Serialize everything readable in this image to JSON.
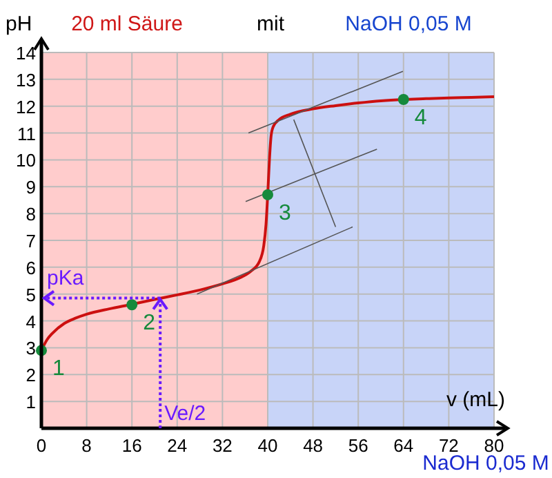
{
  "chart_data": {
    "type": "line",
    "title": "mit",
    "xlabel": "v (mL)",
    "ylabel": "pH",
    "xlim": [
      0,
      80
    ],
    "ylim": [
      0,
      14
    ],
    "xticks": [
      0,
      8,
      16,
      24,
      32,
      40,
      48,
      56,
      64,
      72,
      80
    ],
    "yticks": [
      1,
      2,
      3,
      4,
      5,
      6,
      7,
      8,
      9,
      10,
      11,
      12,
      13,
      14
    ],
    "grid": true,
    "bands": [
      {
        "axis": "x",
        "from": 0,
        "to": 40,
        "label": "20 ml Säure",
        "color": "#ffcccc"
      },
      {
        "axis": "x",
        "from": 40,
        "to": 80,
        "label": "NaOH 0,05 M",
        "color": "#c8d4f8"
      }
    ],
    "series": [
      {
        "color": "#cc1010",
        "x": [
          0,
          1,
          2,
          4,
          6,
          8,
          12,
          16,
          20,
          24,
          28,
          32,
          35,
          37,
          38.5,
          39.3,
          39.7,
          40,
          40.3,
          40.6,
          41,
          42,
          44,
          48,
          52,
          56,
          60,
          64,
          68,
          72,
          76,
          80
        ],
        "values": [
          2.9,
          3.3,
          3.55,
          3.9,
          4.1,
          4.25,
          4.45,
          4.62,
          4.8,
          4.97,
          5.15,
          5.38,
          5.6,
          5.85,
          6.2,
          6.8,
          7.6,
          8.7,
          10.0,
          10.9,
          11.25,
          11.5,
          11.7,
          11.9,
          12.02,
          12.12,
          12.2,
          12.25,
          12.28,
          12.31,
          12.33,
          12.35
        ]
      },
      {
        "color": "#555555",
        "x": [
          27.5,
          55
        ],
        "values": [
          5.0,
          7.5
        ]
      },
      {
        "color": "#555555",
        "x": [
          36.1,
          59.3
        ],
        "values": [
          8.45,
          10.4
        ]
      },
      {
        "color": "#555555",
        "x": [
          36.6,
          63.9
        ],
        "values": [
          11.0,
          13.3
        ]
      },
      {
        "color": "#555555",
        "x": [
          44.6,
          52
        ],
        "values": [
          11.5,
          7.5
        ]
      },
      {
        "type": "scatter",
        "color": "#168a3c",
        "marker": "circle",
        "x": [
          0,
          16,
          40,
          64
        ],
        "values": [
          2.9,
          4.6,
          8.7,
          12.25
        ]
      }
    ],
    "annotations": [
      {
        "text": "pKa",
        "x": 21,
        "y": 4.85
      },
      {
        "text": "Ve/2",
        "x": 21,
        "y": 4.85
      },
      {
        "text": "1",
        "x": 0,
        "y": 2.9
      },
      {
        "text": "2",
        "x": 16,
        "y": 4.6
      },
      {
        "text": "3",
        "x": 40,
        "y": 8.7
      },
      {
        "text": "4",
        "x": 64,
        "y": 12.25
      },
      "NaOH 0,05 M"
    ]
  }
}
